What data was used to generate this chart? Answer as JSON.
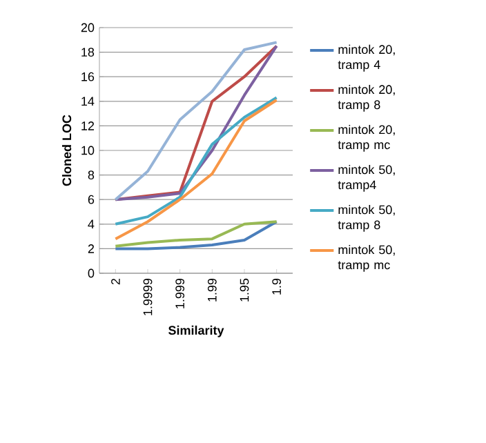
{
  "chart_data": {
    "type": "line",
    "xlabel": "Similarity",
    "ylabel": "Cloned LOC",
    "categories": [
      "2",
      "1.9999",
      "1.999",
      "1.99",
      "1.95",
      "1.9"
    ],
    "ylim": [
      0,
      20
    ],
    "yticks": [
      0,
      2,
      4,
      6,
      8,
      10,
      12,
      14,
      16,
      18,
      20
    ],
    "grid": "y",
    "legend": "right",
    "marker": "none",
    "line_style": "solid",
    "series": [
      {
        "name": "mintok 20, tramp 4",
        "color": "#4a7ebb",
        "values": [
          2.0,
          2.0,
          2.1,
          2.3,
          2.7,
          4.2
        ]
      },
      {
        "name": "mintok 20, tramp 8",
        "color": "#be4b48",
        "values": [
          6.0,
          6.3,
          6.6,
          14.0,
          16.0,
          18.5
        ]
      },
      {
        "name": "mintok 20, tramp mc",
        "color": "#98b954",
        "values": [
          2.2,
          2.5,
          2.7,
          2.8,
          4.0,
          4.2
        ]
      },
      {
        "name": "mintok 50, tramp4",
        "color": "#7d60a0",
        "values": [
          6.0,
          6.2,
          6.5,
          10.0,
          14.5,
          18.5
        ]
      },
      {
        "name": "mintok 50, tramp 8",
        "color": "#46aac5",
        "values": [
          4.0,
          4.6,
          6.2,
          10.5,
          12.7,
          14.3
        ]
      },
      {
        "name": "mintok 50, tramp mc",
        "color": "#f79646",
        "values": [
          2.8,
          4.2,
          6.0,
          8.1,
          12.4,
          14.1
        ]
      },
      {
        "color": "#95b3d7",
        "values": [
          6.0,
          8.3,
          12.5,
          14.8,
          18.2,
          18.8
        ]
      }
    ]
  }
}
